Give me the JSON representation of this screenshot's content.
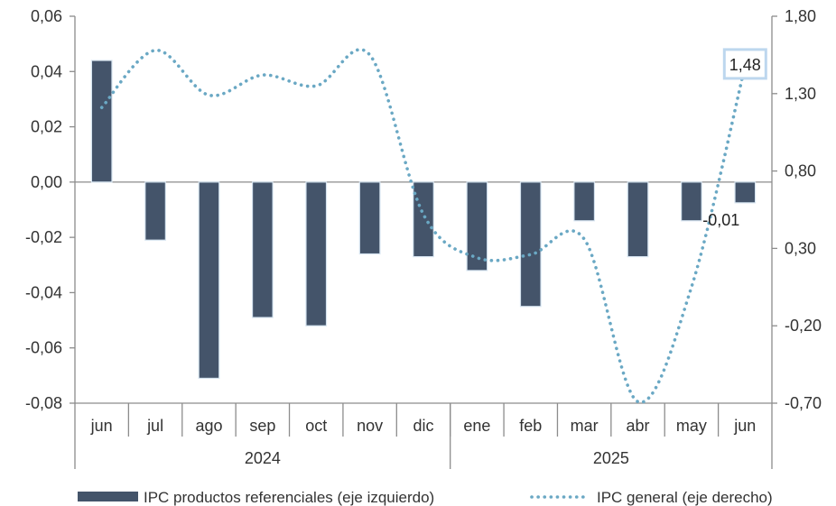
{
  "chart_data": {
    "type": "bar+line",
    "categories": [
      "jun",
      "jul",
      "ago",
      "sep",
      "oct",
      "nov",
      "dic",
      "ene",
      "feb",
      "mar",
      "abr",
      "may",
      "jun"
    ],
    "groups": [
      {
        "label": "2024",
        "count": 7
      },
      {
        "label": "2025",
        "count": 6
      }
    ],
    "series": [
      {
        "name": "IPC productos referenciales (eje izquierdo)",
        "type": "bar",
        "axis": "left",
        "color": "#44546a",
        "values": [
          0.044,
          -0.021,
          -0.071,
          -0.049,
          -0.052,
          -0.026,
          -0.027,
          -0.032,
          -0.045,
          -0.014,
          -0.027,
          -0.014,
          -0.0075
        ]
      },
      {
        "name": "IPC general (eje derecho)",
        "type": "line",
        "style": "dotted",
        "axis": "right",
        "color": "#6aa8c4",
        "values": [
          1.21,
          1.58,
          1.29,
          1.42,
          1.35,
          1.55,
          0.52,
          0.24,
          0.26,
          0.36,
          -0.69,
          0.05,
          1.48
        ]
      }
    ],
    "y_left": {
      "min": -0.08,
      "max": 0.06,
      "ticks": [
        0.06,
        0.04,
        0.02,
        0.0,
        -0.02,
        -0.04,
        -0.06,
        -0.08
      ],
      "tick_labels": [
        "0,06",
        "0,04",
        "0,02",
        "0,00",
        "-0,02",
        "-0,04",
        "-0,06",
        "-0,08"
      ]
    },
    "y_right": {
      "min": -0.7,
      "max": 1.8,
      "ticks": [
        1.8,
        1.3,
        0.8,
        0.3,
        -0.2,
        -0.7
      ],
      "tick_labels": [
        "1,80",
        "1,30",
        "0,80",
        "0,30",
        "-0,20",
        "-0,70"
      ]
    },
    "annotations": [
      {
        "text": "1,48",
        "series": 1,
        "index": 12,
        "boxed": true,
        "box_color": "#bdd7ee"
      },
      {
        "text": "-0,01",
        "series": 0,
        "index": 12,
        "boxed": false
      }
    ],
    "legend": {
      "position": "bottom"
    },
    "grid": false
  }
}
